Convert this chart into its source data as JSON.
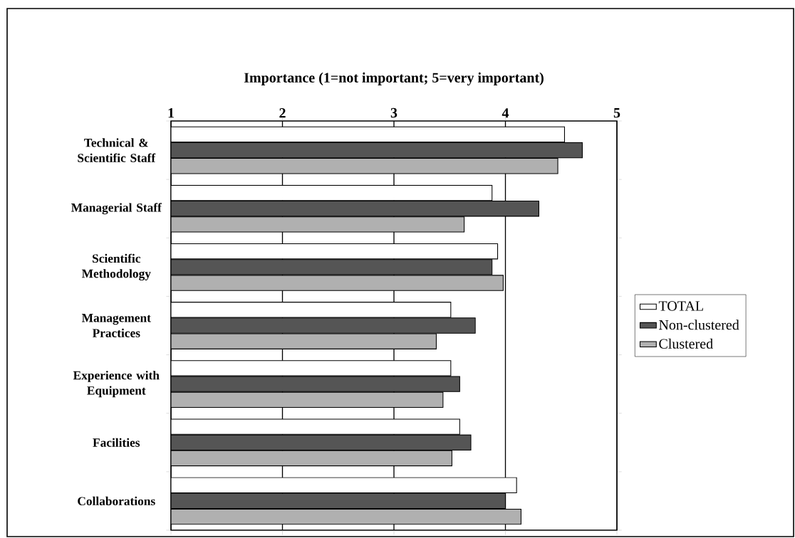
{
  "chart_data": {
    "type": "bar",
    "orientation": "horizontal",
    "xlabel": "Importance (1=not important; 5=very important)",
    "categories": [
      "Technical & Scientific Staff",
      "Managerial Staff",
      "Scientific Methodology",
      "Management Practices",
      "Experience with Equipment",
      "Facilities",
      "Collaborations"
    ],
    "series": [
      {
        "name": "TOTAL",
        "color": "#ffffff",
        "values": [
          4.53,
          3.88,
          3.93,
          3.51,
          3.51,
          3.59,
          4.1
        ]
      },
      {
        "name": "Non-clustered",
        "color": "#555555",
        "values": [
          4.69,
          4.3,
          3.88,
          3.73,
          3.59,
          3.69,
          4.0
        ]
      },
      {
        "name": "Clustered",
        "color": "#b0b0b0",
        "values": [
          4.47,
          3.63,
          3.98,
          3.38,
          3.44,
          3.52,
          4.14
        ]
      }
    ],
    "xlim": [
      1,
      5
    ],
    "xticks": [
      1,
      2,
      3,
      4,
      5
    ],
    "grid": "x",
    "legend": "right"
  }
}
